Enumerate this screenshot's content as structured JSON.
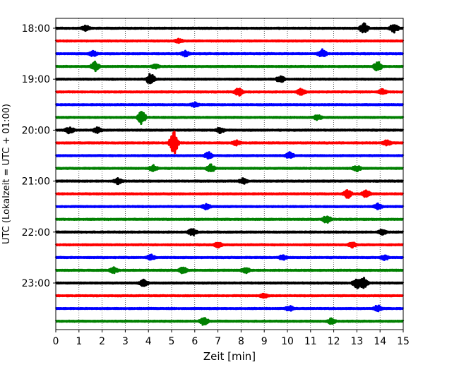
{
  "chart_data": {
    "type": "line",
    "title": "",
    "xlabel": "Zeit  [min]",
    "ylabel": "UTC (Lokalzeit = UTC + 01:00)",
    "xlim": [
      0,
      15
    ],
    "x_ticks": [
      "0",
      "1",
      "2",
      "3",
      "4",
      "5",
      "6",
      "7",
      "8",
      "9",
      "10",
      "11",
      "12",
      "13",
      "14",
      "15"
    ],
    "y_ticks": [
      "18:00",
      "19:00",
      "20:00",
      "21:00",
      "22:00",
      "23:00"
    ],
    "grid": "vertical dotted",
    "colors": [
      "#000000",
      "#ff0000",
      "#0000ff",
      "#008000"
    ],
    "series": [
      {
        "start": "18:00",
        "color": "#000000",
        "events": [
          {
            "x": 1.3,
            "amp": 0.35
          },
          {
            "x": 13.3,
            "amp": 0.8
          },
          {
            "x": 14.6,
            "amp": 0.7
          }
        ]
      },
      {
        "start": "18:15",
        "color": "#ff0000",
        "events": [
          {
            "x": 5.3,
            "amp": 0.3
          }
        ]
      },
      {
        "start": "18:30",
        "color": "#0000ff",
        "events": [
          {
            "x": 1.6,
            "amp": 0.4
          },
          {
            "x": 5.6,
            "amp": 0.4
          },
          {
            "x": 11.5,
            "amp": 0.6
          }
        ]
      },
      {
        "start": "18:45",
        "color": "#008000",
        "events": [
          {
            "x": 1.7,
            "amp": 0.7
          },
          {
            "x": 4.3,
            "amp": 0.3
          },
          {
            "x": 13.9,
            "amp": 0.7
          }
        ]
      },
      {
        "start": "19:00",
        "color": "#000000",
        "events": [
          {
            "x": 4.1,
            "amp": 0.85
          },
          {
            "x": 9.7,
            "amp": 0.5
          }
        ]
      },
      {
        "start": "19:15",
        "color": "#ff0000",
        "events": [
          {
            "x": 7.9,
            "amp": 0.6
          },
          {
            "x": 10.6,
            "amp": 0.45
          },
          {
            "x": 14.1,
            "amp": 0.4
          }
        ]
      },
      {
        "start": "19:30",
        "color": "#0000ff",
        "events": [
          {
            "x": 6.0,
            "amp": 0.3
          }
        ]
      },
      {
        "start": "19:45",
        "color": "#008000",
        "events": [
          {
            "x": 3.7,
            "amp": 0.95
          },
          {
            "x": 11.3,
            "amp": 0.35
          }
        ]
      },
      {
        "start": "20:00",
        "color": "#000000",
        "events": [
          {
            "x": 0.6,
            "amp": 0.5
          },
          {
            "x": 1.8,
            "amp": 0.4
          },
          {
            "x": 7.1,
            "amp": 0.4
          }
        ]
      },
      {
        "start": "20:15",
        "color": "#ff0000",
        "events": [
          {
            "x": 5.1,
            "amp": 1.7
          },
          {
            "x": 7.8,
            "amp": 0.35
          },
          {
            "x": 14.3,
            "amp": 0.35
          }
        ]
      },
      {
        "start": "20:30",
        "color": "#0000ff",
        "events": [
          {
            "x": 6.6,
            "amp": 0.5
          },
          {
            "x": 10.1,
            "amp": 0.45
          }
        ]
      },
      {
        "start": "20:45",
        "color": "#008000",
        "events": [
          {
            "x": 4.2,
            "amp": 0.45
          },
          {
            "x": 6.7,
            "amp": 0.6
          },
          {
            "x": 13.0,
            "amp": 0.4
          }
        ]
      },
      {
        "start": "21:00",
        "color": "#000000",
        "events": [
          {
            "x": 2.7,
            "amp": 0.45
          },
          {
            "x": 8.1,
            "amp": 0.4
          }
        ]
      },
      {
        "start": "21:15",
        "color": "#ff0000",
        "events": [
          {
            "x": 12.6,
            "amp": 0.6
          },
          {
            "x": 13.4,
            "amp": 0.55
          }
        ]
      },
      {
        "start": "21:30",
        "color": "#0000ff",
        "events": [
          {
            "x": 6.5,
            "amp": 0.4
          },
          {
            "x": 13.9,
            "amp": 0.4
          }
        ]
      },
      {
        "start": "21:45",
        "color": "#008000",
        "events": [
          {
            "x": 11.7,
            "amp": 0.6
          }
        ]
      },
      {
        "start": "22:00",
        "color": "#000000",
        "events": [
          {
            "x": 5.9,
            "amp": 0.5
          },
          {
            "x": 14.1,
            "amp": 0.35
          }
        ]
      },
      {
        "start": "22:15",
        "color": "#ff0000",
        "events": [
          {
            "x": 7.0,
            "amp": 0.35
          },
          {
            "x": 12.8,
            "amp": 0.4
          }
        ]
      },
      {
        "start": "22:30",
        "color": "#0000ff",
        "events": [
          {
            "x": 4.1,
            "amp": 0.4
          },
          {
            "x": 9.8,
            "amp": 0.35
          },
          {
            "x": 14.2,
            "amp": 0.35
          }
        ]
      },
      {
        "start": "22:45",
        "color": "#008000",
        "events": [
          {
            "x": 2.5,
            "amp": 0.4
          },
          {
            "x": 5.5,
            "amp": 0.45
          },
          {
            "x": 8.2,
            "amp": 0.4
          }
        ]
      },
      {
        "start": "23:00",
        "color": "#000000",
        "events": [
          {
            "x": 3.8,
            "amp": 0.5
          },
          {
            "x": 13.0,
            "amp": 0.8
          },
          {
            "x": 13.3,
            "amp": 0.7
          }
        ]
      },
      {
        "start": "23:15",
        "color": "#ff0000",
        "events": [
          {
            "x": 9.0,
            "amp": 0.3
          }
        ]
      },
      {
        "start": "23:30",
        "color": "#0000ff",
        "events": [
          {
            "x": 10.1,
            "amp": 0.35
          },
          {
            "x": 13.9,
            "amp": 0.45
          }
        ]
      },
      {
        "start": "23:45",
        "color": "#008000",
        "events": [
          {
            "x": 6.4,
            "amp": 0.6
          },
          {
            "x": 11.9,
            "amp": 0.4
          }
        ]
      }
    ]
  }
}
